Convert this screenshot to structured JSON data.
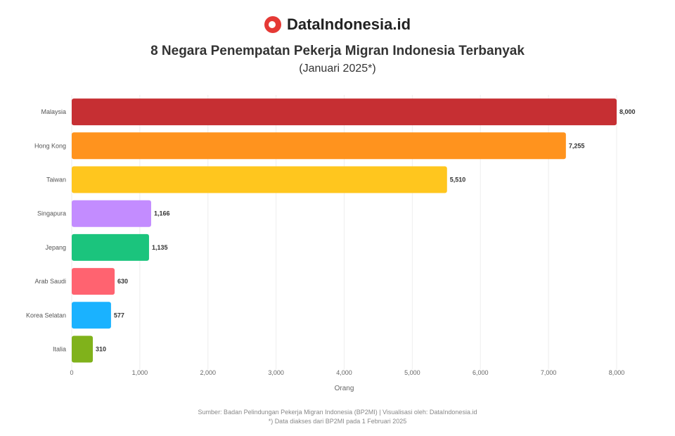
{
  "brand": {
    "name": "DataIndonesia.id",
    "color": "#e53935"
  },
  "header": {
    "title": "8 Negara Penempatan Pekerja Migran Indonesia Terbanyak",
    "subtitle": "(Januari 2025*)"
  },
  "chart_data": {
    "type": "bar",
    "orientation": "horizontal",
    "title": "8 Negara Penempatan Pekerja Migran Indonesia Terbanyak",
    "subtitle": "(Januari 2025*)",
    "categories": [
      "Malaysia",
      "Hong Kong",
      "Taiwan",
      "Singapura",
      "Jepang",
      "Arab Saudi",
      "Korea Selatan",
      "Italia"
    ],
    "values": [
      8000,
      7255,
      5510,
      1166,
      1135,
      630,
      577,
      310
    ],
    "colors": [
      "#c62f33",
      "#ff931e",
      "#ffc61e",
      "#c38cff",
      "#1bc47d",
      "#ff6370",
      "#1ab2ff",
      "#80b21b"
    ],
    "xlabel": "Orang",
    "ylabel": "",
    "xlim": [
      0,
      8500
    ],
    "xticks": [
      0,
      1000,
      2000,
      3000,
      4000,
      5000,
      6000,
      7000,
      8000
    ],
    "xtick_labels": [
      "0",
      "1,000",
      "2,000",
      "3,000",
      "4,000",
      "5,000",
      "6,000",
      "7,000",
      "8,000"
    ],
    "grid": true,
    "legend": "none"
  },
  "footer": {
    "source": "Sumber: Badan Pelindungan Pekerja Migran Indonesia (BP2MI) | Visualisasi oleh: DataIndonesia.id",
    "note": "*) Data diakses dari BP2MI pada 1 Februari 2025"
  }
}
